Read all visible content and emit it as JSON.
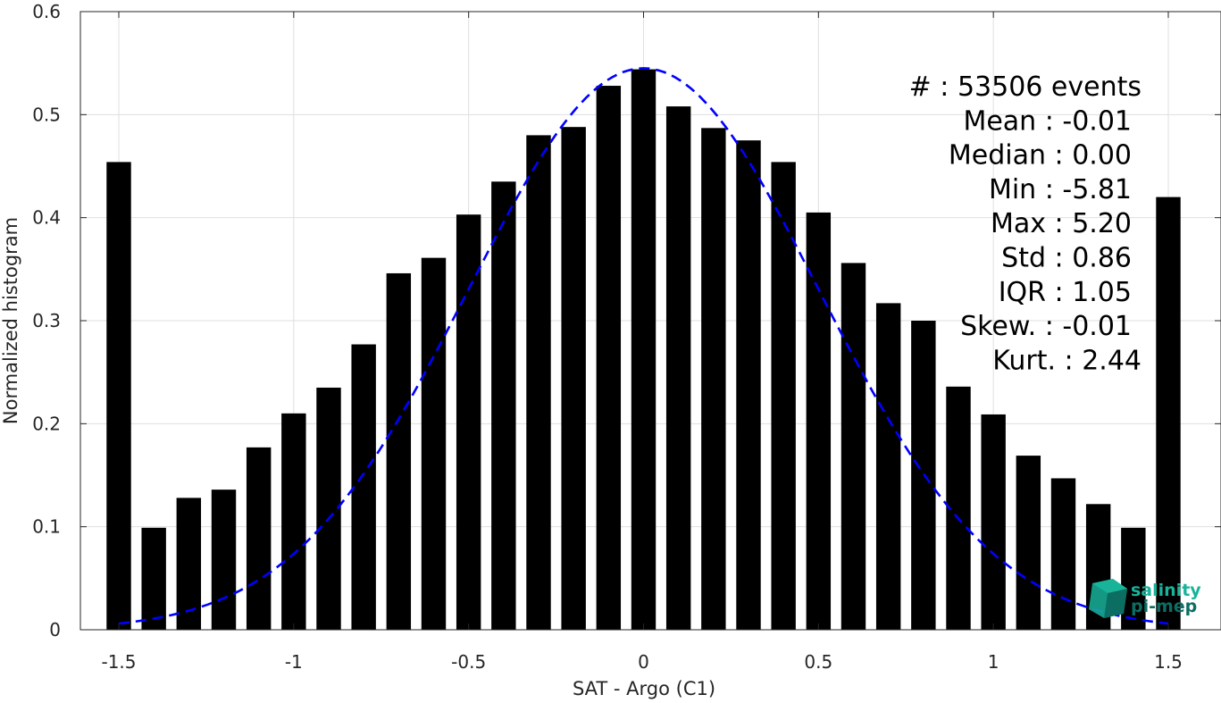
{
  "chart_data": {
    "type": "bar",
    "xlabel": "SAT - Argo (C1)",
    "ylabel": "Normalized histogram",
    "xlim": [
      -1.55,
      1.55
    ],
    "ylim": [
      0,
      0.6
    ],
    "grid": true,
    "x_ticks": [
      -1.5,
      -1,
      -0.5,
      0,
      0.5,
      1,
      1.5
    ],
    "x_tick_labels": [
      "-1.5",
      "-1",
      "-0.5",
      "0",
      "0.5",
      "1",
      "1.5"
    ],
    "y_ticks": [
      0,
      0.1,
      0.2,
      0.3,
      0.4,
      0.5,
      0.6
    ],
    "y_tick_labels": [
      "0",
      "0.1",
      "0.2",
      "0.3",
      "0.4",
      "0.5",
      "0.6"
    ],
    "bar_color": "#000000",
    "bars": {
      "x": [
        -1.5,
        -1.4,
        -1.3,
        -1.2,
        -1.1,
        -1.0,
        -0.9,
        -0.8,
        -0.7,
        -0.6,
        -0.5,
        -0.4,
        -0.3,
        -0.2,
        -0.1,
        0.0,
        0.1,
        0.2,
        0.3,
        0.4,
        0.5,
        0.6,
        0.7,
        0.8,
        0.9,
        1.0,
        1.1,
        1.2,
        1.3,
        1.4,
        1.5
      ],
      "values": [
        0.454,
        0.099,
        0.128,
        0.136,
        0.177,
        0.21,
        0.235,
        0.277,
        0.346,
        0.361,
        0.403,
        0.435,
        0.48,
        0.488,
        0.528,
        0.544,
        0.508,
        0.487,
        0.475,
        0.454,
        0.405,
        0.356,
        0.317,
        0.3,
        0.236,
        0.209,
        0.169,
        0.147,
        0.122,
        0.099,
        0.42
      ],
      "width": 0.07
    },
    "fit_curve": {
      "style": "dashed",
      "color": "#0000ff",
      "mean": 0.0,
      "std": 0.5,
      "peak": 0.545,
      "x_range": [
        -1.5,
        1.5
      ]
    },
    "stats": [
      {
        "label": "#  : 53506 events",
        "anchor": "end-far"
      },
      {
        "label": "Mean : -0.01",
        "anchor": "end"
      },
      {
        "label": "Median : 0.00",
        "anchor": "end"
      },
      {
        "label": "Min : -5.81",
        "anchor": "end"
      },
      {
        "label": "Max : 5.20",
        "anchor": "end"
      },
      {
        "label": "Std : 0.86",
        "anchor": "end"
      },
      {
        "label": "IQR : 1.05",
        "anchor": "end"
      },
      {
        "label": "Skew. : -0.01",
        "anchor": "end"
      },
      {
        "label": "Kurt. : 2.44",
        "anchor": "end-far"
      }
    ]
  },
  "logo": {
    "line1": "salinity",
    "line2": "pi-mep",
    "color_light": "#19b39a",
    "color_dark": "#0c6e63"
  }
}
